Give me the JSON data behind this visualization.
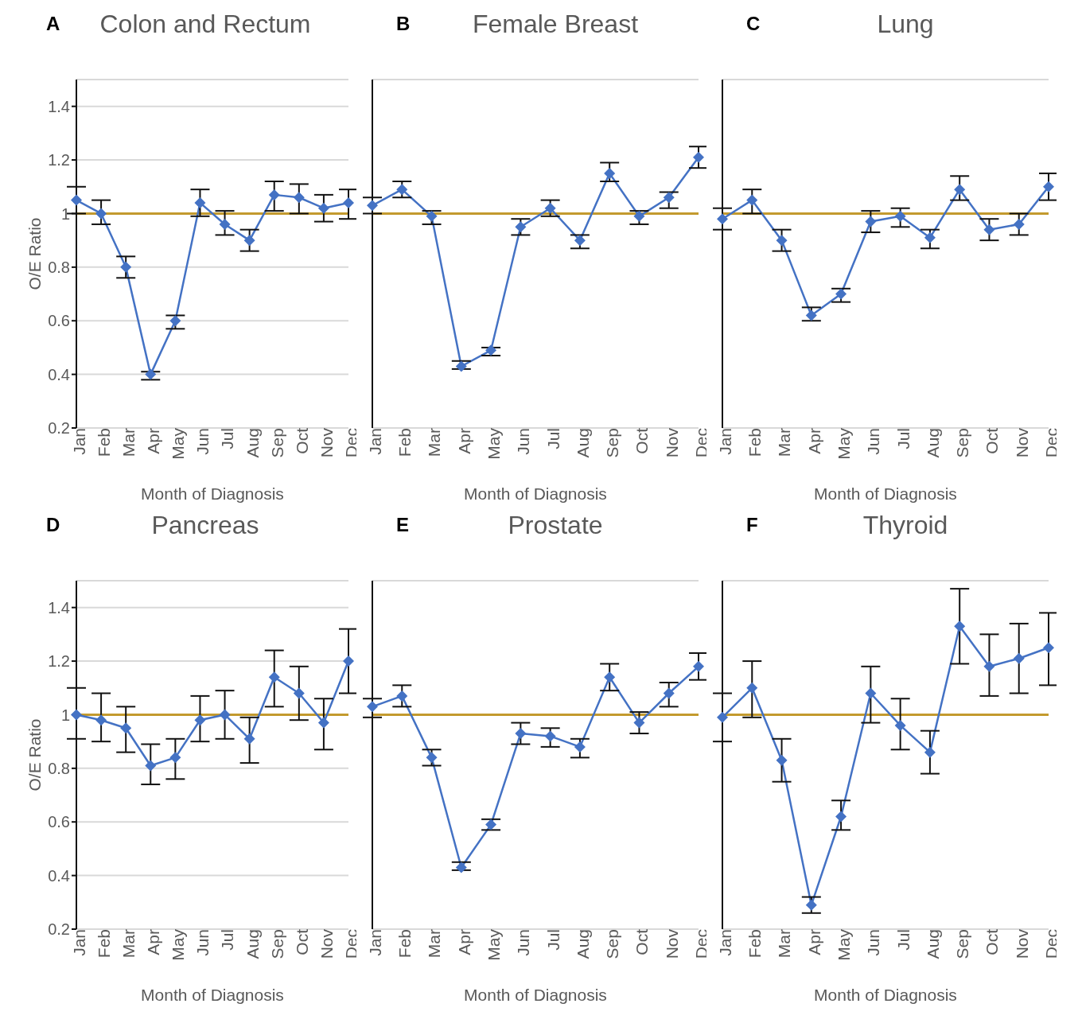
{
  "chart_data": [
    {
      "type": "line",
      "title": "Colon and Rectum",
      "annotations": [
        "A"
      ],
      "xlabel": "Month of Diagnosis",
      "ylabel": "O/E Ratio",
      "categories": [
        "Jan",
        "Feb",
        "Mar",
        "Apr",
        "May",
        "Jun",
        "Jul",
        "Aug",
        "Sep",
        "Oct",
        "Nov",
        "Dec"
      ],
      "series": [
        {
          "color": "#4472c4",
          "values": [
            1.05,
            1.0,
            0.8,
            0.4,
            0.6,
            1.04,
            0.96,
            0.9,
            1.07,
            1.06,
            1.02,
            1.04
          ],
          "errors": [
            [
              1.0,
              1.1
            ],
            [
              0.96,
              1.05
            ],
            [
              0.76,
              0.84
            ],
            [
              0.38,
              0.41
            ],
            [
              0.57,
              0.62
            ],
            [
              0.99,
              1.09
            ],
            [
              0.92,
              1.01
            ],
            [
              0.86,
              0.94
            ],
            [
              1.01,
              1.12
            ],
            [
              1.0,
              1.11
            ],
            [
              0.97,
              1.07
            ],
            [
              0.98,
              1.09
            ]
          ]
        }
      ],
      "ylim": [
        0.2,
        1.5
      ],
      "yticks": [
        0.2,
        0.4,
        0.6,
        0.8,
        1,
        1.2,
        1.4
      ],
      "grid": "y",
      "marker": "diamond",
      "line_style": "solid",
      "ref_lines": [
        {
          "axis": "y",
          "value": 1,
          "color": "#c39a2e"
        }
      ]
    },
    {
      "type": "line",
      "title": "Female Breast",
      "annotations": [
        "B"
      ],
      "xlabel": "Month of Diagnosis",
      "categories": [
        "Jan",
        "Feb",
        "Mar",
        "Apr",
        "May",
        "Jun",
        "Jul",
        "Aug",
        "Sep",
        "Oct",
        "Nov",
        "Dec"
      ],
      "series": [
        {
          "color": "#4472c4",
          "values": [
            1.03,
            1.09,
            0.99,
            0.43,
            0.49,
            0.95,
            1.02,
            0.9,
            1.15,
            0.99,
            1.06,
            1.21
          ],
          "errors": [
            [
              1.0,
              1.06
            ],
            [
              1.06,
              1.12
            ],
            [
              0.96,
              1.01
            ],
            [
              0.42,
              0.45
            ],
            [
              0.47,
              0.5
            ],
            [
              0.92,
              0.98
            ],
            [
              0.99,
              1.05
            ],
            [
              0.87,
              0.92
            ],
            [
              1.12,
              1.19
            ],
            [
              0.96,
              1.01
            ],
            [
              1.02,
              1.08
            ],
            [
              1.17,
              1.25
            ]
          ]
        }
      ],
      "ylim": [
        0.2,
        1.5
      ],
      "yticks": [
        0.2,
        0.4,
        0.6,
        0.8,
        1,
        1.2,
        1.4
      ],
      "tick_labels": "x",
      "grid": "y",
      "marker": "diamond",
      "line_style": "solid",
      "ref_lines": [
        {
          "axis": "y",
          "value": 1,
          "color": "#c39a2e"
        }
      ]
    },
    {
      "type": "line",
      "title": "Lung",
      "annotations": [
        "C"
      ],
      "xlabel": "Month of Diagnosis",
      "categories": [
        "Jan",
        "Feb",
        "Mar",
        "Apr",
        "May",
        "Jun",
        "Jul",
        "Aug",
        "Sep",
        "Oct",
        "Nov",
        "Dec"
      ],
      "series": [
        {
          "color": "#4472c4",
          "values": [
            0.98,
            1.05,
            0.9,
            0.62,
            0.7,
            0.97,
            0.99,
            0.91,
            1.09,
            0.94,
            0.96,
            1.1
          ],
          "errors": [
            [
              0.94,
              1.02
            ],
            [
              1.0,
              1.09
            ],
            [
              0.86,
              0.94
            ],
            [
              0.6,
              0.65
            ],
            [
              0.67,
              0.72
            ],
            [
              0.93,
              1.01
            ],
            [
              0.95,
              1.02
            ],
            [
              0.87,
              0.94
            ],
            [
              1.05,
              1.14
            ],
            [
              0.9,
              0.98
            ],
            [
              0.92,
              1.0
            ],
            [
              1.05,
              1.15
            ]
          ]
        }
      ],
      "ylim": [
        0.2,
        1.5
      ],
      "yticks": [
        0.2,
        0.4,
        0.6,
        0.8,
        1,
        1.2,
        1.4
      ],
      "tick_labels": "x",
      "grid": "y",
      "marker": "diamond",
      "line_style": "solid",
      "ref_lines": [
        {
          "axis": "y",
          "value": 1,
          "color": "#c39a2e"
        }
      ]
    },
    {
      "type": "line",
      "title": "Pancreas",
      "annotations": [
        "D"
      ],
      "xlabel": "Month of Diagnosis",
      "ylabel": "O/E Ratio",
      "categories": [
        "Jan",
        "Feb",
        "Mar",
        "Apr",
        "May",
        "Jun",
        "Jul",
        "Aug",
        "Sep",
        "Oct",
        "Nov",
        "Dec"
      ],
      "series": [
        {
          "color": "#4472c4",
          "values": [
            1.0,
            0.98,
            0.95,
            0.81,
            0.84,
            0.98,
            1.0,
            0.91,
            1.14,
            1.08,
            0.97,
            1.2
          ],
          "errors": [
            [
              0.91,
              1.1
            ],
            [
              0.9,
              1.08
            ],
            [
              0.86,
              1.03
            ],
            [
              0.74,
              0.89
            ],
            [
              0.76,
              0.91
            ],
            [
              0.9,
              1.07
            ],
            [
              0.91,
              1.09
            ],
            [
              0.82,
              0.99
            ],
            [
              1.03,
              1.24
            ],
            [
              0.98,
              1.18
            ],
            [
              0.87,
              1.06
            ],
            [
              1.08,
              1.32
            ]
          ]
        }
      ],
      "ylim": [
        0.2,
        1.5
      ],
      "yticks": [
        0.2,
        0.4,
        0.6,
        0.8,
        1,
        1.2,
        1.4
      ],
      "grid": "y",
      "marker": "diamond",
      "line_style": "solid",
      "ref_lines": [
        {
          "axis": "y",
          "value": 1,
          "color": "#c39a2e"
        }
      ]
    },
    {
      "type": "line",
      "title": "Prostate",
      "annotations": [
        "E"
      ],
      "xlabel": "Month of Diagnosis",
      "categories": [
        "Jan",
        "Feb",
        "Mar",
        "Apr",
        "May",
        "Jun",
        "Jul",
        "Aug",
        "Sep",
        "Oct",
        "Nov",
        "Dec"
      ],
      "series": [
        {
          "color": "#4472c4",
          "values": [
            1.03,
            1.07,
            0.84,
            0.43,
            0.59,
            0.93,
            0.92,
            0.88,
            1.14,
            0.97,
            1.08,
            1.18
          ],
          "errors": [
            [
              0.99,
              1.06
            ],
            [
              1.03,
              1.11
            ],
            [
              0.81,
              0.87
            ],
            [
              0.42,
              0.45
            ],
            [
              0.57,
              0.61
            ],
            [
              0.89,
              0.97
            ],
            [
              0.88,
              0.95
            ],
            [
              0.84,
              0.91
            ],
            [
              1.09,
              1.19
            ],
            [
              0.93,
              1.01
            ],
            [
              1.03,
              1.12
            ],
            [
              1.13,
              1.23
            ]
          ]
        }
      ],
      "ylim": [
        0.2,
        1.5
      ],
      "yticks": [
        0.2,
        0.4,
        0.6,
        0.8,
        1,
        1.2,
        1.4
      ],
      "tick_labels": "x",
      "grid": "y",
      "marker": "diamond",
      "line_style": "solid",
      "ref_lines": [
        {
          "axis": "y",
          "value": 1,
          "color": "#c39a2e"
        }
      ]
    },
    {
      "type": "line",
      "title": "Thyroid",
      "annotations": [
        "F"
      ],
      "xlabel": "Month of Diagnosis",
      "categories": [
        "Jan",
        "Feb",
        "Mar",
        "Apr",
        "May",
        "Jun",
        "Jul",
        "Aug",
        "Sep",
        "Oct",
        "Nov",
        "Dec"
      ],
      "series": [
        {
          "color": "#4472c4",
          "values": [
            0.99,
            1.1,
            0.83,
            0.29,
            0.62,
            1.08,
            0.96,
            0.86,
            1.33,
            1.18,
            1.21,
            1.25
          ],
          "errors": [
            [
              0.9,
              1.08
            ],
            [
              0.99,
              1.2
            ],
            [
              0.75,
              0.91
            ],
            [
              0.26,
              0.32
            ],
            [
              0.57,
              0.68
            ],
            [
              0.97,
              1.18
            ],
            [
              0.87,
              1.06
            ],
            [
              0.78,
              0.94
            ],
            [
              1.19,
              1.47
            ],
            [
              1.07,
              1.3
            ],
            [
              1.08,
              1.34
            ],
            [
              1.11,
              1.38
            ]
          ]
        }
      ],
      "ylim": [
        0.2,
        1.5
      ],
      "yticks": [
        0.2,
        0.4,
        0.6,
        0.8,
        1,
        1.2,
        1.4
      ],
      "tick_labels": "x",
      "grid": "y",
      "marker": "diamond",
      "line_style": "solid",
      "ref_lines": [
        {
          "axis": "y",
          "value": 1,
          "color": "#c39a2e"
        }
      ]
    }
  ]
}
